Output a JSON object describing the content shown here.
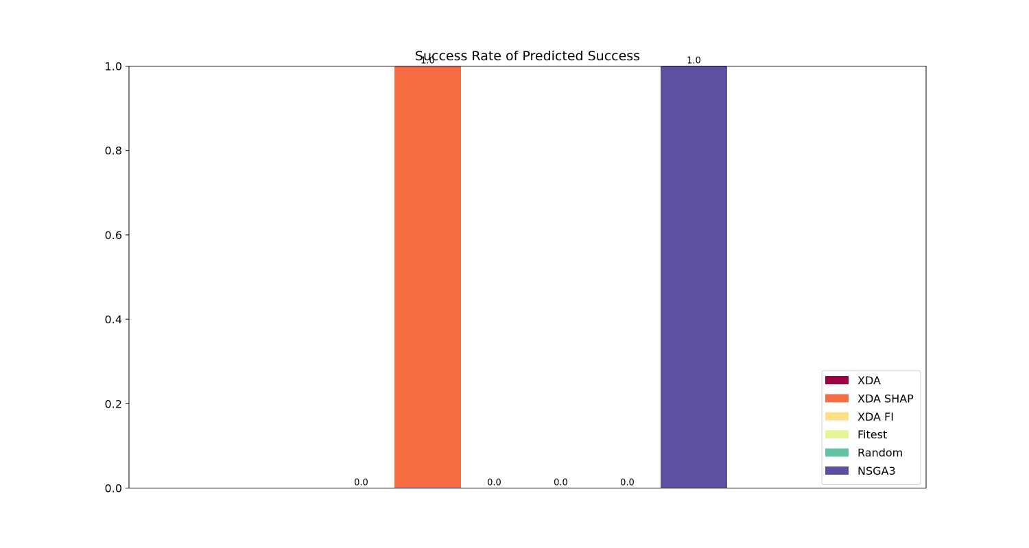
{
  "chart_data": {
    "type": "bar",
    "title": "Success Rate of Predicted Success",
    "xlabel": "",
    "ylabel": "",
    "ylim": [
      0,
      1.0
    ],
    "yticks": [
      "0.0",
      "0.2",
      "0.4",
      "0.6",
      "0.8",
      "1.0"
    ],
    "grid": false,
    "legend_position": "lower-right",
    "series": [
      {
        "name": "XDA",
        "value": 0.0,
        "label": "0.0",
        "color": "#9e0142"
      },
      {
        "name": "XDA SHAP",
        "value": 1.0,
        "label": "1.0",
        "color": "#f46d43"
      },
      {
        "name": "XDA FI",
        "value": 0.0,
        "label": "0.0",
        "color": "#fee08b"
      },
      {
        "name": "Fitest",
        "value": 0.0,
        "label": "0.0",
        "color": "#e6f598"
      },
      {
        "name": "Random",
        "value": 0.0,
        "label": "0.0",
        "color": "#66c2a5"
      },
      {
        "name": "NSGA3",
        "value": 1.0,
        "label": "1.0",
        "color": "#5e4fa2"
      }
    ]
  }
}
